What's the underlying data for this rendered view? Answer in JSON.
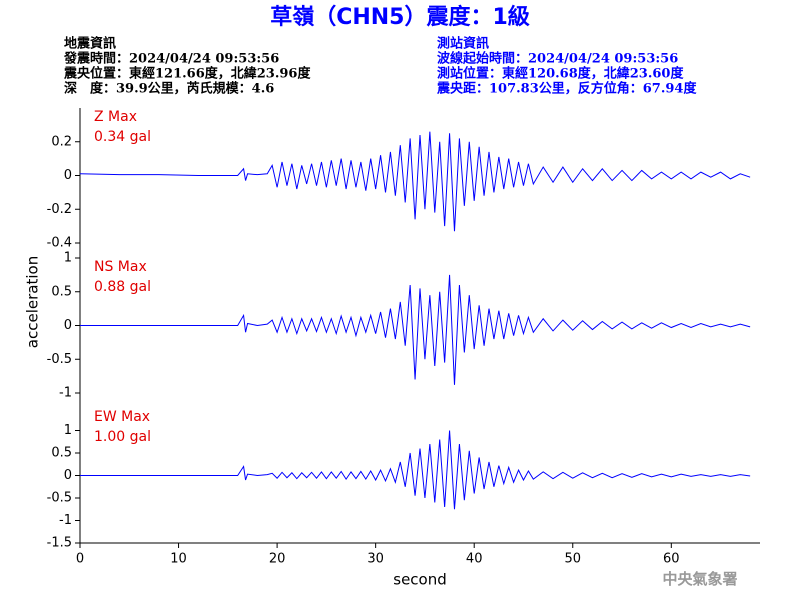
{
  "title": "草嶺（CHN5）震度：1級",
  "left_info": [
    "地震資訊",
    "發震時間：2024/04/24 09:53:56",
    "震央位置：東經121.66度，北緯23.96度",
    "深　度：39.9公里，芮氏規模：4.6"
  ],
  "right_info": [
    "測站資訊",
    "波線起始時間：2024/04/24 09:53:56",
    "測站位置：東經120.68度，北緯23.60度",
    "震央距：107.83公里，反方位角：67.94度"
  ],
  "y_axis_label": "acceleration",
  "x_axis_label": "second",
  "footer": "中央氣象署",
  "chart_data": [
    {
      "type": "line",
      "label": "Z Max",
      "max_label": "0.34 gal",
      "color": "#0000ff",
      "xlim": [
        0,
        69
      ],
      "ylim": [
        -0.4,
        0.4
      ],
      "yticks": [
        -0.4,
        -0.2,
        0,
        0.2
      ],
      "x": [
        0,
        4,
        8,
        12,
        16,
        16.6,
        16.8,
        17,
        18,
        19,
        19.5,
        20,
        20.5,
        21,
        21.5,
        22,
        22.5,
        23,
        23.5,
        24,
        24.5,
        25,
        25.5,
        26,
        26.5,
        27,
        27.5,
        28,
        28.5,
        29,
        29.5,
        30,
        30.5,
        31,
        31.5,
        32,
        32.5,
        33,
        33.5,
        34,
        34.5,
        35,
        35.5,
        36,
        36.5,
        37,
        37.5,
        38,
        38.5,
        39,
        39.5,
        40,
        40.5,
        41,
        41.5,
        42,
        42.5,
        43,
        43.5,
        44,
        44.5,
        45,
        45.5,
        46,
        47,
        48,
        49,
        50,
        51,
        52,
        53,
        54,
        55,
        56,
        57,
        58,
        59,
        60,
        61,
        62,
        63,
        64,
        65,
        66,
        67,
        68
      ],
      "values": [
        0.01,
        0.005,
        0.005,
        0,
        0,
        0.04,
        -0.03,
        0.01,
        0.005,
        0.01,
        0.06,
        -0.07,
        0.08,
        -0.06,
        0.07,
        -0.08,
        0.06,
        -0.05,
        0.07,
        -0.06,
        0.08,
        -0.07,
        0.09,
        -0.06,
        0.1,
        -0.08,
        0.09,
        -0.07,
        0.08,
        -0.09,
        0.1,
        -0.08,
        0.12,
        -0.1,
        0.14,
        -0.12,
        0.18,
        -0.16,
        0.22,
        -0.26,
        0.24,
        -0.2,
        0.26,
        -0.22,
        0.2,
        -0.3,
        0.25,
        -0.33,
        0.22,
        -0.18,
        0.2,
        -0.15,
        0.17,
        -0.12,
        0.14,
        -0.1,
        0.11,
        -0.08,
        0.1,
        -0.07,
        0.08,
        -0.06,
        0.07,
        -0.05,
        0.05,
        -0.04,
        0.05,
        -0.04,
        0.04,
        -0.03,
        0.04,
        -0.03,
        0.03,
        -0.03,
        0.03,
        -0.02,
        0.02,
        -0.02,
        0.02,
        -0.02,
        0.02,
        -0.01,
        0.02,
        -0.02,
        0.01,
        -0.01
      ]
    },
    {
      "type": "line",
      "label": "NS Max",
      "max_label": "0.88 gal",
      "color": "#0000ff",
      "xlim": [
        0,
        69
      ],
      "ylim": [
        -1,
        1
      ],
      "yticks": [
        -1,
        -0.5,
        0,
        0.5,
        1
      ],
      "x": [
        0,
        4,
        8,
        12,
        16,
        16.6,
        16.8,
        17,
        18,
        19,
        19.5,
        20,
        20.5,
        21,
        21.5,
        22,
        22.5,
        23,
        23.5,
        24,
        24.5,
        25,
        25.5,
        26,
        26.5,
        27,
        27.5,
        28,
        28.5,
        29,
        29.5,
        30,
        30.5,
        31,
        31.5,
        32,
        32.5,
        33,
        33.5,
        34,
        34.5,
        35,
        35.5,
        36,
        36.5,
        37,
        37.5,
        38,
        38.5,
        39,
        39.5,
        40,
        40.5,
        41,
        41.5,
        42,
        42.5,
        43,
        43.5,
        44,
        44.5,
        45,
        45.5,
        46,
        47,
        48,
        49,
        50,
        51,
        52,
        53,
        54,
        55,
        56,
        57,
        58,
        59,
        60,
        61,
        62,
        63,
        64,
        65,
        66,
        67,
        68
      ],
      "values": [
        0,
        0,
        0,
        0,
        0,
        0.15,
        -0.1,
        0.03,
        0,
        0.02,
        0.08,
        -0.1,
        0.12,
        -0.1,
        0.1,
        -0.12,
        0.1,
        -0.08,
        0.1,
        -0.09,
        0.12,
        -0.1,
        0.1,
        -0.12,
        0.14,
        -0.1,
        0.12,
        -0.15,
        0.12,
        -0.1,
        0.15,
        -0.12,
        0.2,
        -0.18,
        0.25,
        -0.2,
        0.35,
        -0.3,
        0.6,
        -0.8,
        0.55,
        -0.5,
        0.45,
        -0.6,
        0.5,
        -0.55,
        0.75,
        -0.88,
        0.6,
        -0.4,
        0.45,
        -0.35,
        0.3,
        -0.3,
        0.25,
        -0.2,
        0.22,
        -0.2,
        0.18,
        -0.15,
        0.15,
        -0.12,
        0.12,
        -0.1,
        0.1,
        -0.08,
        0.08,
        -0.07,
        0.07,
        -0.06,
        0.06,
        -0.05,
        0.05,
        -0.05,
        0.04,
        -0.04,
        0.04,
        -0.03,
        0.03,
        -0.03,
        0.03,
        -0.02,
        0.02,
        -0.02,
        0.02,
        -0.02
      ]
    },
    {
      "type": "line",
      "label": "EW Max",
      "max_label": "1.00 gal",
      "color": "#0000ff",
      "xlim": [
        0,
        69
      ],
      "ylim": [
        -1.5,
        1.5
      ],
      "yticks": [
        -1.5,
        -1,
        -0.5,
        0,
        0.5,
        1
      ],
      "xticks": [
        0,
        10,
        20,
        30,
        40,
        50,
        60
      ],
      "x": [
        0,
        4,
        8,
        12,
        16,
        16.6,
        16.8,
        17,
        18,
        19,
        19.5,
        20,
        20.5,
        21,
        21.5,
        22,
        22.5,
        23,
        23.5,
        24,
        24.5,
        25,
        25.5,
        26,
        26.5,
        27,
        27.5,
        28,
        28.5,
        29,
        29.5,
        30,
        30.5,
        31,
        31.5,
        32,
        32.5,
        33,
        33.5,
        34,
        34.5,
        35,
        35.5,
        36,
        36.5,
        37,
        37.5,
        38,
        38.5,
        39,
        39.5,
        40,
        40.5,
        41,
        41.5,
        42,
        42.5,
        43,
        43.5,
        44,
        44.5,
        45,
        45.5,
        46,
        47,
        48,
        49,
        50,
        51,
        52,
        53,
        54,
        55,
        56,
        57,
        58,
        59,
        60,
        61,
        62,
        63,
        64,
        65,
        66,
        67,
        68
      ],
      "values": [
        0,
        0,
        0,
        0,
        0,
        0.2,
        -0.1,
        0.03,
        0,
        0.02,
        0.05,
        -0.06,
        0.07,
        -0.05,
        0.06,
        -0.07,
        0.06,
        -0.05,
        0.07,
        -0.06,
        0.08,
        -0.07,
        0.08,
        -0.06,
        0.09,
        -0.08,
        0.08,
        -0.07,
        0.09,
        -0.08,
        0.1,
        -0.1,
        0.12,
        -0.12,
        0.15,
        -0.15,
        0.3,
        -0.25,
        0.5,
        -0.45,
        0.6,
        -0.5,
        0.7,
        -0.6,
        0.8,
        -0.7,
        1.0,
        -0.75,
        0.7,
        -0.55,
        0.55,
        -0.4,
        0.4,
        -0.3,
        0.3,
        -0.25,
        0.22,
        -0.18,
        0.18,
        -0.15,
        0.12,
        -0.1,
        0.1,
        -0.08,
        0.08,
        -0.07,
        0.07,
        -0.06,
        0.06,
        -0.05,
        0.05,
        -0.05,
        0.04,
        -0.04,
        0.04,
        -0.03,
        0.03,
        -0.03,
        0.03,
        -0.02,
        0.02,
        -0.02,
        0.02,
        -0.02,
        0.02,
        -0.01
      ]
    }
  ]
}
